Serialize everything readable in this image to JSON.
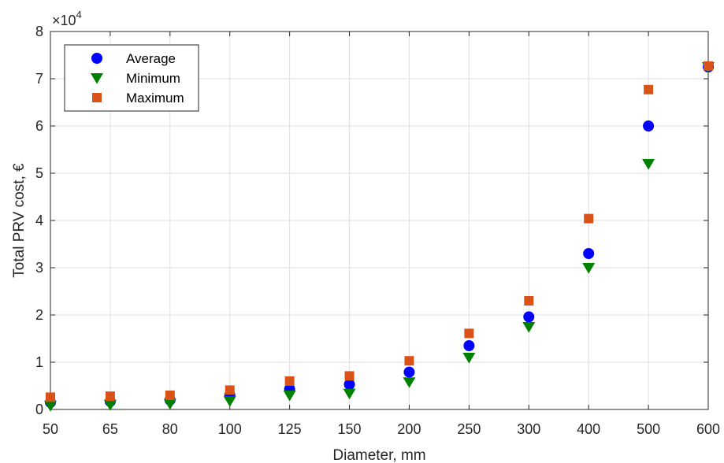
{
  "chart_data": {
    "type": "scatter",
    "xlabel": "Diameter, mm",
    "ylabel": "Total PRV cost, €",
    "exponent_label": {
      "base": "×10",
      "power": "4"
    },
    "categories": [
      "50",
      "65",
      "80",
      "100",
      "125",
      "150",
      "200",
      "250",
      "300",
      "400",
      "500",
      "600"
    ],
    "ylim": [
      0,
      80000
    ],
    "yticks": [
      0,
      10000,
      20000,
      30000,
      40000,
      50000,
      60000,
      70000,
      80000
    ],
    "ytick_labels": [
      "0",
      "1",
      "2",
      "3",
      "4",
      "5",
      "6",
      "7",
      "8"
    ],
    "grid": true,
    "legend_position": "top-left",
    "series": [
      {
        "name": "Average",
        "marker": "circle",
        "color": "#0000ff",
        "values": [
          1500,
          1700,
          2000,
          3000,
          4300,
          5300,
          7900,
          13500,
          19600,
          33000,
          60000,
          72500
        ]
      },
      {
        "name": "Minimum",
        "marker": "triangle-down",
        "color": "#008000",
        "values": [
          800,
          1000,
          1200,
          1800,
          3000,
          3400,
          5800,
          11000,
          17500,
          30000,
          52000,
          72500
        ]
      },
      {
        "name": "Maximum",
        "marker": "square",
        "color": "#d95319",
        "values": [
          2600,
          2800,
          3000,
          4100,
          6000,
          7100,
          10300,
          16100,
          23000,
          40400,
          67700,
          72700
        ]
      }
    ]
  }
}
